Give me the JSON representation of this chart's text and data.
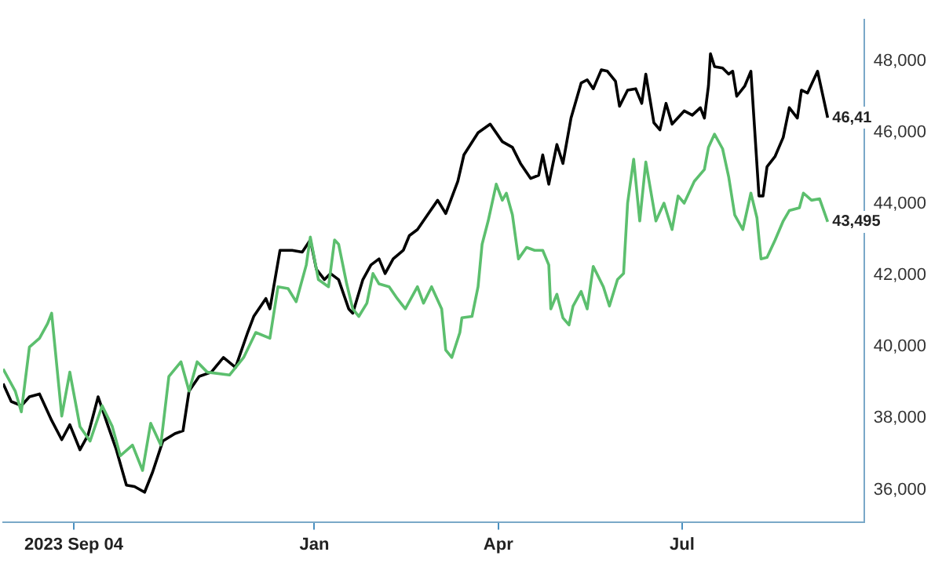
{
  "chart_data": {
    "type": "line",
    "xlim": [
      "2023-07-31",
      "2024-09-29"
    ],
    "xticks": [
      {
        "value": "2023-09-04",
        "label": "2023 Sep 04"
      },
      {
        "value": "2024-01-01",
        "label": "Jan"
      },
      {
        "value": "2024-04-01",
        "label": "Apr"
      },
      {
        "value": "2024-07-01",
        "label": "Jul"
      }
    ],
    "ylim": [
      35100,
      49150
    ],
    "yticks": [
      {
        "value": 36000,
        "label": "36,000"
      },
      {
        "value": 38000,
        "label": "38,000"
      },
      {
        "value": 40000,
        "label": "40,000"
      },
      {
        "value": 42000,
        "label": "42,000"
      },
      {
        "value": 44000,
        "label": "44,000"
      },
      {
        "value": 46000,
        "label": "46,000"
      },
      {
        "value": 48000,
        "label": "48,000"
      }
    ],
    "grid": false,
    "legend": false,
    "marker": "none",
    "line_style": "solid",
    "annotations": [
      {
        "text": "46,41",
        "x": "2024-09-11",
        "y": 46410
      },
      {
        "text": "43,495",
        "x": "2024-09-11",
        "y": 43495
      }
    ],
    "series": [
      {
        "color": "#5cbf6e",
        "x": [
          "2023-07-31",
          "2023-08-06",
          "2023-08-09",
          "2023-08-13",
          "2023-08-18",
          "2023-08-22",
          "2023-08-24",
          "2023-08-29",
          "2023-09-02",
          "2023-09-07",
          "2023-09-12",
          "2023-09-18",
          "2023-09-23",
          "2023-09-27",
          "2023-10-03",
          "2023-10-08",
          "2023-10-12",
          "2023-10-17",
          "2023-10-21",
          "2023-10-27",
          "2023-10-31",
          "2023-11-04",
          "2023-11-09",
          "2023-11-20",
          "2023-11-27",
          "2023-12-03",
          "2023-12-10",
          "2023-12-14",
          "2023-12-19",
          "2023-12-23",
          "2023-12-28",
          "2023-12-30",
          "2024-01-03",
          "2024-01-08",
          "2024-01-11",
          "2024-01-13",
          "2024-01-17",
          "2024-01-20",
          "2024-01-23",
          "2024-01-27",
          "2024-01-30",
          "2024-02-02",
          "2024-02-07",
          "2024-02-11",
          "2024-02-15",
          "2024-02-21",
          "2024-02-24",
          "2024-02-28",
          "2024-03-04",
          "2024-03-06",
          "2024-03-09",
          "2024-03-13",
          "2024-03-14",
          "2024-03-19",
          "2024-03-22",
          "2024-03-24",
          "2024-03-27",
          "2024-03-31",
          "2024-04-03",
          "2024-04-05",
          "2024-04-08",
          "2024-04-11",
          "2024-04-15",
          "2024-04-19",
          "2024-04-23",
          "2024-04-26",
          "2024-04-27",
          "2024-04-30",
          "2024-05-03",
          "2024-05-06",
          "2024-05-08",
          "2024-05-12",
          "2024-05-15",
          "2024-05-18",
          "2024-05-23",
          "2024-05-26",
          "2024-05-30",
          "2024-06-02",
          "2024-06-04",
          "2024-06-07",
          "2024-06-10",
          "2024-06-13",
          "2024-06-18",
          "2024-06-22",
          "2024-06-26",
          "2024-06-29",
          "2024-07-02",
          "2024-07-07",
          "2024-07-12",
          "2024-07-14",
          "2024-07-17",
          "2024-07-21",
          "2024-07-24",
          "2024-07-27",
          "2024-07-31",
          "2024-08-04",
          "2024-08-07",
          "2024-08-09",
          "2024-08-12",
          "2024-08-16",
          "2024-08-20",
          "2024-08-23",
          "2024-08-28",
          "2024-08-30",
          "2024-09-03",
          "2024-09-07",
          "2024-09-11"
        ],
        "values": [
          39380,
          38760,
          38180,
          39990,
          40240,
          40650,
          40940,
          38060,
          39290,
          37770,
          37360,
          38350,
          37770,
          36950,
          37250,
          36540,
          37860,
          37250,
          39170,
          39580,
          38760,
          39580,
          39290,
          39210,
          39700,
          40400,
          40240,
          41680,
          41630,
          41260,
          42290,
          43070,
          41880,
          41680,
          42990,
          42870,
          41760,
          41060,
          40850,
          41220,
          42050,
          41760,
          41680,
          41350,
          41060,
          41680,
          41220,
          41680,
          41060,
          39910,
          39700,
          40400,
          40810,
          40850,
          41680,
          42870,
          43520,
          44550,
          44100,
          44300,
          43690,
          42460,
          42780,
          42700,
          42700,
          42290,
          41060,
          41470,
          40810,
          40610,
          41140,
          41550,
          41060,
          42250,
          41680,
          41140,
          41880,
          42050,
          44020,
          45250,
          43520,
          45170,
          43520,
          44020,
          43280,
          44220,
          44020,
          44630,
          44960,
          45580,
          45950,
          45540,
          44760,
          43690,
          43280,
          44300,
          43610,
          42460,
          42500,
          42990,
          43520,
          43810,
          43890,
          44300,
          44100,
          44140,
          43495
        ]
      },
      {
        "color": "#000000",
        "x": [
          "2023-07-31",
          "2023-08-04",
          "2023-08-09",
          "2023-08-13",
          "2023-08-18",
          "2023-08-24",
          "2023-08-29",
          "2023-09-02",
          "2023-09-07",
          "2023-09-11",
          "2023-09-16",
          "2023-09-21",
          "2023-09-25",
          "2023-09-30",
          "2023-10-04",
          "2023-10-09",
          "2023-10-13",
          "2023-10-18",
          "2023-10-24",
          "2023-10-28",
          "2023-10-31",
          "2023-11-05",
          "2023-11-11",
          "2023-11-17",
          "2023-11-23",
          "2023-11-29",
          "2023-12-02",
          "2023-12-08",
          "2023-12-10",
          "2023-12-15",
          "2023-12-21",
          "2023-12-26",
          "2023-12-30",
          "2024-01-02",
          "2024-01-06",
          "2024-01-09",
          "2024-01-13",
          "2024-01-18",
          "2024-01-20",
          "2024-01-25",
          "2024-01-29",
          "2024-02-02",
          "2024-02-05",
          "2024-02-09",
          "2024-02-14",
          "2024-02-17",
          "2024-02-21",
          "2024-02-26",
          "2024-03-02",
          "2024-03-06",
          "2024-03-12",
          "2024-03-15",
          "2024-03-22",
          "2024-03-28",
          "2024-04-03",
          "2024-04-08",
          "2024-04-12",
          "2024-04-17",
          "2024-04-21",
          "2024-04-23",
          "2024-04-26",
          "2024-04-30",
          "2024-05-03",
          "2024-05-07",
          "2024-05-12",
          "2024-05-15",
          "2024-05-18",
          "2024-05-22",
          "2024-05-25",
          "2024-05-29",
          "2024-05-31",
          "2024-06-04",
          "2024-06-08",
          "2024-06-11",
          "2024-06-13",
          "2024-06-17",
          "2024-06-20",
          "2024-06-23",
          "2024-06-26",
          "2024-07-02",
          "2024-07-06",
          "2024-07-10",
          "2024-07-12",
          "2024-07-14",
          "2024-07-15",
          "2024-07-17",
          "2024-07-21",
          "2024-07-24",
          "2024-07-26",
          "2024-07-28",
          "2024-08-01",
          "2024-08-04",
          "2024-08-08",
          "2024-08-10",
          "2024-08-12",
          "2024-08-16",
          "2024-08-20",
          "2024-08-23",
          "2024-08-27",
          "2024-08-29",
          "2024-09-01",
          "2024-09-06",
          "2024-09-11"
        ],
        "values": [
          38970,
          38470,
          38350,
          38600,
          38680,
          37940,
          37400,
          37820,
          37120,
          37530,
          38600,
          37770,
          37120,
          36130,
          36090,
          35930,
          36500,
          37360,
          37570,
          37650,
          38760,
          39170,
          39290,
          39700,
          39420,
          40400,
          40850,
          41350,
          41060,
          42700,
          42700,
          42650,
          42990,
          42170,
          41880,
          42050,
          41880,
          41060,
          40940,
          41880,
          42290,
          42460,
          42050,
          42460,
          42700,
          43110,
          43280,
          43690,
          44100,
          43730,
          44630,
          45370,
          45990,
          46230,
          45740,
          45580,
          45130,
          44710,
          44800,
          45370,
          44550,
          45660,
          45130,
          46400,
          47380,
          47470,
          47220,
          47750,
          47710,
          47430,
          46730,
          47180,
          47220,
          46810,
          47630,
          46270,
          46070,
          46810,
          46230,
          46600,
          46480,
          46690,
          46400,
          47300,
          48200,
          47840,
          47800,
          47630,
          47710,
          47010,
          47300,
          47710,
          44220,
          44220,
          45040,
          45330,
          45860,
          46690,
          46400,
          47180,
          47100,
          47710,
          46410
        ]
      }
    ]
  }
}
